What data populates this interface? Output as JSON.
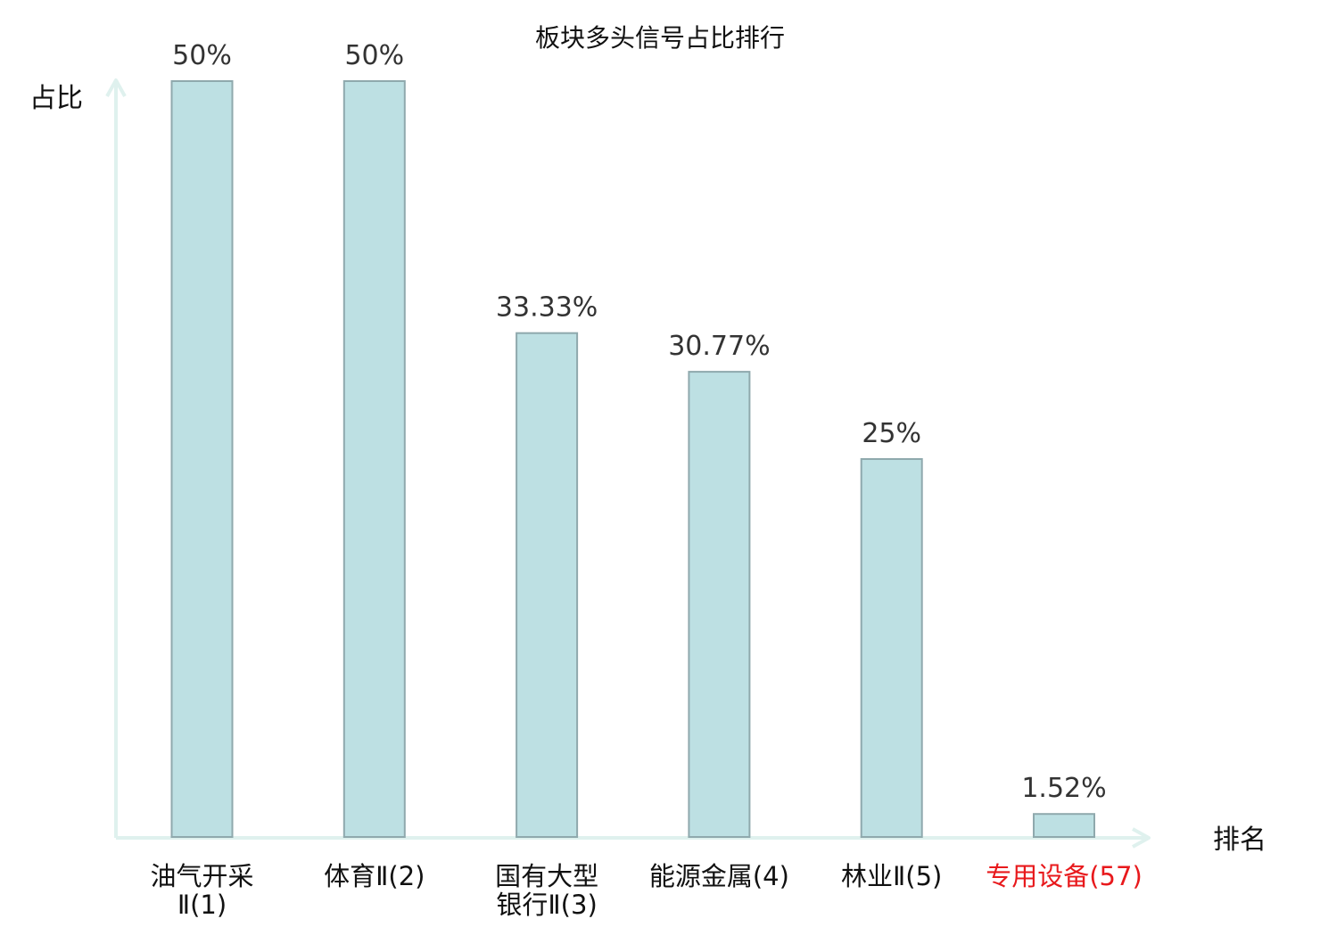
{
  "chart_data": {
    "type": "bar",
    "title": "板块多头信号占比排行",
    "xlabel": "排名",
    "ylabel": "占比",
    "ylim": [
      0,
      50
    ],
    "grid": false,
    "value_suffix": "%",
    "categories": [
      [
        "油气开采",
        "Ⅱ(1)"
      ],
      [
        "体育Ⅱ(2)"
      ],
      [
        "国有大型",
        "银行Ⅱ(3)"
      ],
      [
        "能源金属(4)"
      ],
      [
        "林业Ⅱ(5)"
      ],
      [
        "专用设备(57)"
      ]
    ],
    "values": [
      50,
      50,
      33.33,
      30.77,
      25,
      1.52
    ],
    "value_labels": [
      "50%",
      "50%",
      "33.33%",
      "30.77%",
      "25%",
      "1.52%"
    ],
    "highlight_index": 5
  },
  "colors": {
    "bar_fill": "#bde0e3",
    "bar_stroke": "#8fa9ad",
    "axis": "#dff1ee",
    "text": "#111111",
    "value_text": "#333333",
    "highlight_text": "#e8191c"
  }
}
